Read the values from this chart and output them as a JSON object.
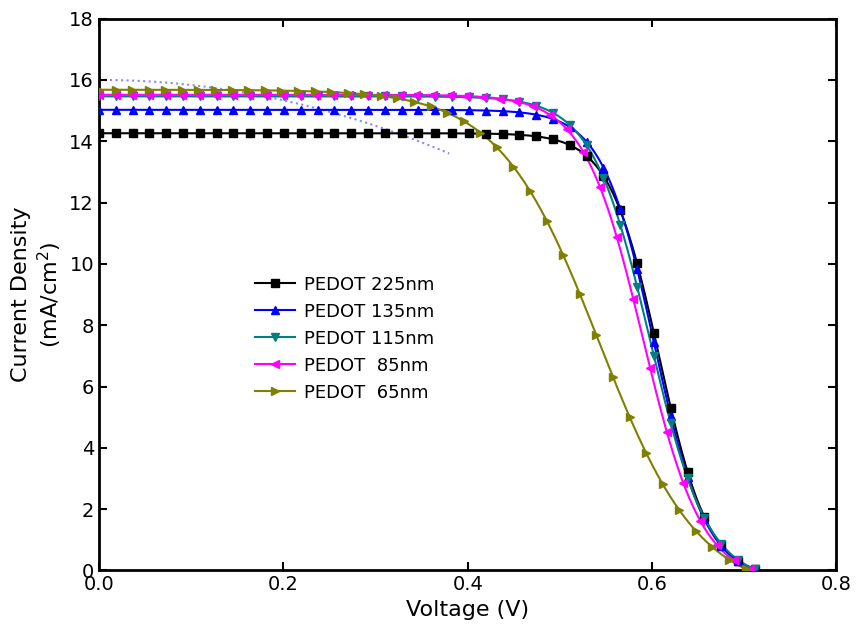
{
  "title": "",
  "xlabel": "Voltage (V)",
  "ylabel": "Current Density\n(mA/cm$^2$)",
  "xlim": [
    0.0,
    0.8
  ],
  "ylim": [
    0.0,
    18.0
  ],
  "xticks": [
    0.0,
    0.2,
    0.4,
    0.6,
    0.8
  ],
  "yticks": [
    0,
    2,
    4,
    6,
    8,
    10,
    12,
    14,
    16,
    18
  ],
  "series": [
    {
      "label": "PEDOT 225nm",
      "color": "#000000",
      "marker": "s",
      "Jsc": 14.0,
      "Voc": 0.715,
      "a": 0.048,
      "V_knee": 0.5,
      "sharpness": 8.0,
      "n_markers": 40
    },
    {
      "label": "PEDOT 135nm",
      "color": "#0000FF",
      "marker": "^",
      "Jsc": 14.75,
      "Voc": 0.715,
      "a": 0.048,
      "V_knee": 0.49,
      "sharpness": 8.0,
      "n_markers": 40
    },
    {
      "label": "PEDOT 115nm",
      "color": "#008080",
      "marker": "v",
      "Jsc": 15.1,
      "Voc": 0.715,
      "a": 0.048,
      "V_knee": 0.48,
      "sharpness": 7.5,
      "n_markers": 40
    },
    {
      "label": "PEDOT  85nm",
      "color": "#FF00FF",
      "marker": "<",
      "Jsc": 15.15,
      "Voc": 0.71,
      "a": 0.048,
      "V_knee": 0.47,
      "sharpness": 7.5,
      "n_markers": 40
    },
    {
      "label": "PEDOT  65nm",
      "color": "#808000",
      "marker": ">",
      "Jsc": 14.9,
      "Voc": 0.705,
      "a": 0.055,
      "V_knee": 0.38,
      "sharpness": 6.0,
      "n_markers": 40
    }
  ],
  "dotted_line": {
    "color": "#8888FF",
    "Jsc": 16.0,
    "Voc": 0.4,
    "style": ":"
  },
  "background_color": "#ffffff",
  "fontsize_axis_label": 16,
  "fontsize_tick": 14,
  "fontsize_legend": 13,
  "marker_size": 6,
  "linewidth": 1.5
}
